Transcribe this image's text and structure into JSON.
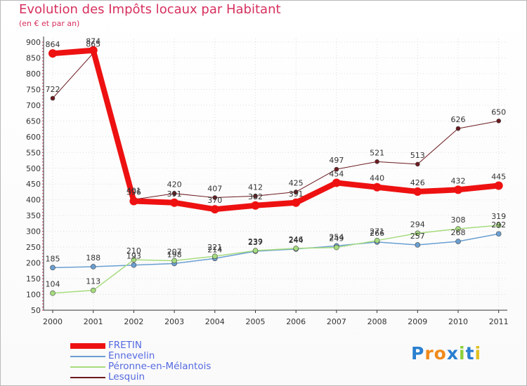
{
  "header": {
    "title": "Evolution des Impôts locaux par Habitant",
    "subtitle": "(en € et par an)"
  },
  "colors": {
    "title": "#d6305e",
    "axis": "#333333",
    "grid": "#dddddd",
    "tick_marks": "#d6305e",
    "labels": "#333333",
    "legend_text": "#5469e0"
  },
  "chart_data": {
    "type": "line",
    "title": "Evolution des Impôts locaux par Habitant",
    "subtitle": "(en € et par an)",
    "xlabel": "",
    "ylabel": "",
    "x": [
      "2000",
      "2001",
      "2002",
      "2003",
      "2004",
      "2005",
      "2006",
      "2007",
      "2008",
      "2009",
      "2010",
      "2011"
    ],
    "ylim": [
      50,
      900
    ],
    "yticks": [
      50,
      100,
      150,
      200,
      250,
      300,
      350,
      400,
      450,
      500,
      550,
      600,
      650,
      700,
      750,
      800,
      850,
      900
    ],
    "grid": true,
    "legend_position": "bottom-left",
    "series": [
      {
        "name": "Lesquin",
        "color": "#6b1a1f",
        "width": 1,
        "marker_radius": 3,
        "values": [
          722,
          865,
          401,
          420,
          407,
          412,
          425,
          497,
          521,
          513,
          626,
          650
        ]
      },
      {
        "name": "Ennevelin",
        "color": "#6a9fd2",
        "width": 1.5,
        "marker_radius": 3.5,
        "values": [
          185,
          188,
          193,
          198,
          214,
          237,
          244,
          254,
          266,
          257,
          268,
          292
        ]
      },
      {
        "name": "Péronne-en-Mélantois",
        "color": "#a6dc7e",
        "width": 1.5,
        "marker_radius": 3.5,
        "values": [
          104,
          113,
          210,
          207,
          221,
          239,
          246,
          249,
          271,
          294,
          308,
          319
        ]
      },
      {
        "name": "FRETIN",
        "color": "#ee1111",
        "width": 8,
        "marker_radius": 6,
        "values": [
          864,
          874,
          396,
          391,
          370,
          382,
          391,
          454,
          440,
          426,
          432,
          445
        ]
      }
    ]
  },
  "legend": [
    {
      "name": "FRETIN",
      "color": "#ee1111",
      "thickness": 8
    },
    {
      "name": "Ennevelin",
      "color": "#6a9fd2",
      "thickness": 2
    },
    {
      "name": "Péronne-en-Mélantois",
      "color": "#a6dc7e",
      "thickness": 2
    },
    {
      "name": "Lesquin",
      "color": "#6b1a1f",
      "thickness": 2
    }
  ],
  "logo": {
    "letters": [
      "P",
      "r",
      "o",
      "x",
      "i",
      "t",
      "i"
    ],
    "colors": [
      "#2a7fd0",
      "#f08a1a",
      "#f08a1a",
      "#2a7fd0",
      "#8ccf3a",
      "#2a7fd0",
      "#e0c020"
    ]
  }
}
